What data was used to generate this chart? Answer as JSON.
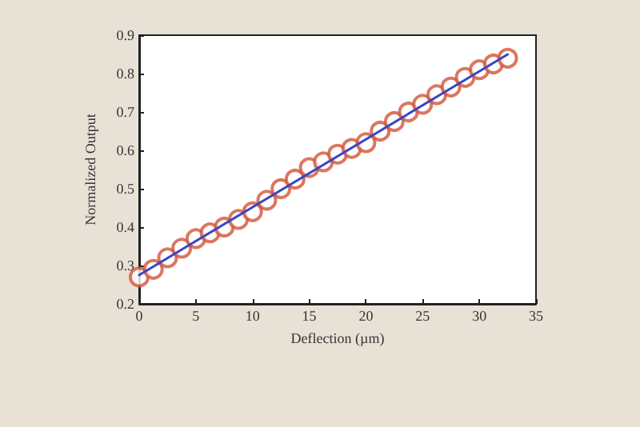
{
  "chart_data": {
    "type": "scatter",
    "xlabel": "Deflection (µm)",
    "ylabel": "Normalized Output",
    "xlim": [
      0,
      35
    ],
    "xticks": [
      0,
      5,
      10,
      15,
      20,
      25,
      30,
      35
    ],
    "ylim": [
      0.2,
      0.9
    ],
    "yticks": [
      0.2,
      0.3,
      0.4,
      0.5,
      0.6,
      0.7,
      0.8,
      0.9
    ],
    "grid": false,
    "series": [
      {
        "marker": "circle",
        "color": "#d2553a",
        "x": [
          0,
          1.25,
          2.5,
          3.75,
          5,
          6.25,
          7.5,
          8.75,
          10,
          11.25,
          12.5,
          13.75,
          15,
          16.25,
          17.5,
          18.75,
          20,
          21.25,
          22.5,
          23.75,
          25,
          26.25,
          27.5,
          28.75,
          30,
          31.25,
          32.5
        ],
        "values": [
          0.27,
          0.29,
          0.32,
          0.345,
          0.37,
          0.385,
          0.4,
          0.42,
          0.44,
          0.47,
          0.5,
          0.525,
          0.555,
          0.57,
          0.59,
          0.605,
          0.62,
          0.65,
          0.675,
          0.7,
          0.72,
          0.745,
          0.765,
          0.79,
          0.81,
          0.825,
          0.84
        ]
      },
      {
        "type": "line",
        "marker": "none",
        "color": "#3a46c0",
        "x": [
          0,
          32.5
        ],
        "values": [
          0.275,
          0.85
        ]
      }
    ]
  }
}
